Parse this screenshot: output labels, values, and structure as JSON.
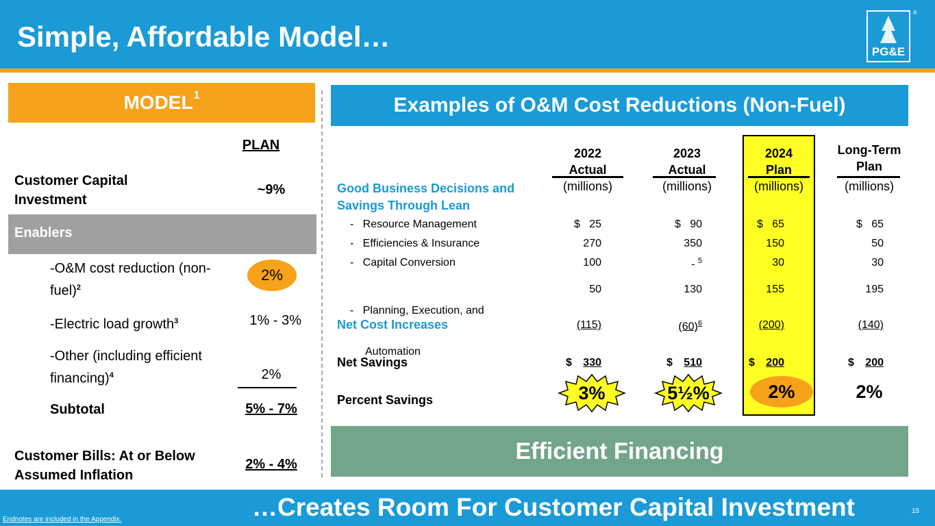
{
  "header": {
    "title": "Simple, Affordable Model…",
    "logo_text": "PG&E",
    "logo_mark": "®"
  },
  "colors": {
    "header_blue": "#1a9ad6",
    "accent_orange": "#f7a21b",
    "enablers_gray": "#a0a0a0",
    "highlight_yellow": "#ffff24",
    "financing_green": "#72a58a"
  },
  "model": {
    "banner": "MODEL",
    "banner_sup": "1",
    "plan_header": "PLAN",
    "rows": {
      "customer_capital": {
        "label": "Customer Capital Investment",
        "value": "~9%"
      },
      "enablers": {
        "label": "Enablers"
      },
      "om": {
        "label": "-O&M cost reduction (non-fuel)",
        "sup": "2",
        "value": "2%"
      },
      "load": {
        "label": "-Electric load growth",
        "sup": "3",
        "value": "1% - 3%"
      },
      "other": {
        "label": "-Other (including efficient financing)",
        "sup": "4",
        "value": "2%"
      },
      "subtotal": {
        "label": "Subtotal",
        "value": "5% - 7%"
      },
      "bills": {
        "label": "Customer Bills: At or Below Assumed Inflation",
        "value": "2% - 4%"
      }
    }
  },
  "om_table": {
    "banner": "Examples of O&M Cost Reductions (Non-Fuel)",
    "columns": [
      {
        "line1": "2022",
        "line2": "Actual",
        "unit": "(millions)"
      },
      {
        "line1": "2023",
        "line2": "Actual",
        "unit": "(millions)"
      },
      {
        "line1": "2024",
        "line2": "Plan",
        "unit": "(millions)"
      },
      {
        "line1": "Long-Term",
        "line2": "Plan",
        "unit": "(millions)"
      }
    ],
    "section_label": "Good Business Decisions and Savings Through Lean",
    "rows": [
      {
        "label": "-   Resource Management",
        "values": [
          "$   25",
          "$   90",
          "$   65",
          "$   65"
        ]
      },
      {
        "label": "-   Efficiencies & Insurance",
        "values": [
          "270",
          "350",
          "150",
          "50"
        ]
      },
      {
        "label": "-   Capital Conversion",
        "values": [
          "100",
          "-",
          "30",
          "30"
        ],
        "sup_2023": "5"
      },
      {
        "label": "-   Planning, Execution, and",
        "label2": "Automation",
        "values": [
          "50",
          "130",
          "155",
          "195"
        ]
      }
    ],
    "net_cost": {
      "label": "Net Cost Increases",
      "values": [
        "(115)",
        "(60)",
        "(200)",
        "(140)"
      ],
      "sup_2023": "6"
    },
    "net_savings": {
      "label": "Net Savings",
      "dollar": "$",
      "values": [
        "330",
        "510",
        "200",
        "200"
      ]
    },
    "percent_savings": {
      "label": "Percent Savings",
      "values": [
        "3%",
        "5½%",
        "2%",
        "2%"
      ]
    }
  },
  "financing_banner": "Efficient Financing",
  "footer": {
    "text": "…Creates Room For Customer Capital Investment",
    "page": "15",
    "endnote": "Endnotes are included in the Appendix."
  }
}
